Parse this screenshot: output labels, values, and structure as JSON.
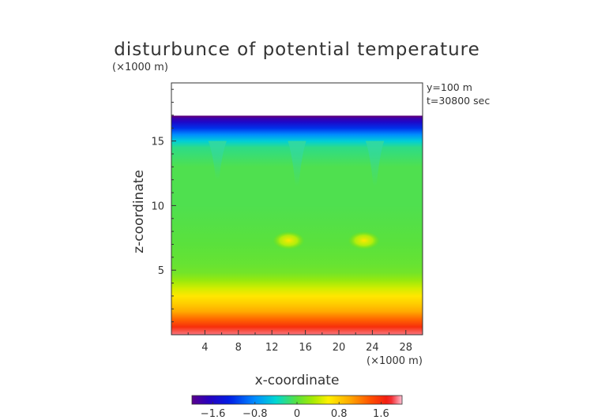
{
  "chart_data": {
    "type": "heatmap",
    "title": "disturbunce of potential temperature",
    "xlabel": "x-coordinate",
    "ylabel": "z-coordinate",
    "x_unit": "(×1000 m)",
    "y_unit": "(×1000 m)",
    "annotations": [
      "y=100 m",
      "t=30800 sec"
    ],
    "xlim": [
      0,
      30
    ],
    "ylim": [
      0,
      19.5
    ],
    "x_ticks": [
      4,
      8,
      12,
      16,
      20,
      24,
      28
    ],
    "y_ticks": [
      5,
      10,
      15
    ],
    "domain_top": 16.9,
    "colorbar": {
      "range": [
        -2.0,
        2.0
      ],
      "ticks": [
        -1.6,
        -0.8,
        0,
        0.8,
        1.6
      ],
      "tick_labels": [
        "−1.6",
        "−0.8",
        "0",
        "0.8",
        "1.6"
      ]
    },
    "vertical_profile": [
      {
        "z": 0.0,
        "value": 1.9
      },
      {
        "z": 0.6,
        "value": 1.6
      },
      {
        "z": 1.2,
        "value": 1.3
      },
      {
        "z": 1.8,
        "value": 1.0
      },
      {
        "z": 2.4,
        "value": 0.8
      },
      {
        "z": 3.0,
        "value": 0.65
      },
      {
        "z": 3.6,
        "value": 0.45
      },
      {
        "z": 4.2,
        "value": 0.25
      },
      {
        "z": 4.8,
        "value": 0.1
      },
      {
        "z": 5.5,
        "value": 0.05
      },
      {
        "z": 7.0,
        "value": 0.0
      },
      {
        "z": 10.0,
        "value": -0.05
      },
      {
        "z": 13.0,
        "value": -0.05
      },
      {
        "z": 14.5,
        "value": -0.2
      },
      {
        "z": 15.0,
        "value": -0.45
      },
      {
        "z": 15.5,
        "value": -0.8
      },
      {
        "z": 16.0,
        "value": -1.2
      },
      {
        "z": 16.5,
        "value": -1.6
      },
      {
        "z": 16.9,
        "value": -1.9
      }
    ],
    "features": [
      {
        "kind": "warm-blob",
        "x": 14,
        "z": 7.3,
        "value": 0.7
      },
      {
        "kind": "warm-blob",
        "x": 23,
        "z": 7.3,
        "value": 0.7
      },
      {
        "kind": "cool-plume",
        "x": 5.5,
        "z_top": 15.0,
        "z_bottom": 12.0,
        "value": -0.35
      },
      {
        "kind": "cool-plume",
        "x": 15.0,
        "z_top": 15.0,
        "z_bottom": 11.5,
        "value": -0.45
      },
      {
        "kind": "cool-plume",
        "x": 24.3,
        "z_top": 15.0,
        "z_bottom": 11.5,
        "value": -0.45
      }
    ]
  }
}
